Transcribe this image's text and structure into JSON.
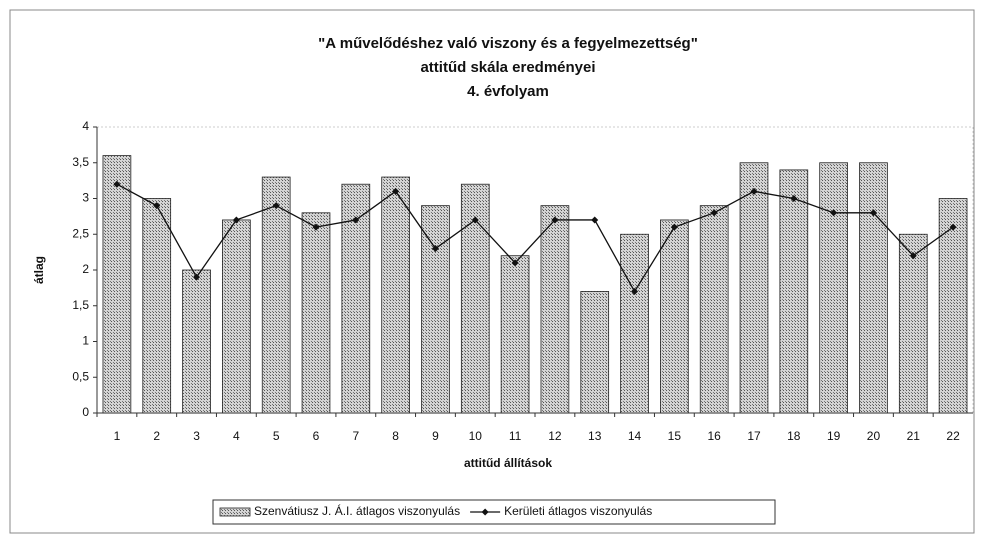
{
  "chart_data": {
    "type": "bar_line",
    "title": [
      "\"A művelődéshez való viszony és a fegyelmezettség\"",
      "attitűd skála eredményei",
      "4. évfolyam"
    ],
    "x_label": "attitűd állítások",
    "y_label": "átlag",
    "categories": [
      "1",
      "2",
      "3",
      "4",
      "5",
      "6",
      "7",
      "8",
      "9",
      "10",
      "11",
      "12",
      "13",
      "14",
      "15",
      "16",
      "17",
      "18",
      "19",
      "20",
      "21",
      "22"
    ],
    "series": [
      {
        "name": "Szenvátiusz J. Á.I. átlagos viszonyulás",
        "kind": "bar",
        "color": "#a9a9a9",
        "values": [
          3.6,
          3.0,
          2.0,
          2.7,
          3.3,
          2.8,
          3.2,
          3.3,
          2.9,
          3.2,
          2.2,
          2.9,
          1.7,
          2.5,
          2.7,
          2.9,
          3.5,
          3.4,
          3.5,
          3.5,
          2.5,
          3.0
        ]
      },
      {
        "name": "Kerületi átlagos viszonyulás",
        "kind": "line",
        "color": "#111111",
        "values": [
          3.2,
          2.9,
          1.9,
          2.7,
          2.9,
          2.6,
          2.7,
          3.1,
          2.3,
          2.7,
          2.1,
          2.7,
          2.7,
          1.7,
          2.6,
          2.8,
          3.1,
          3.0,
          2.8,
          2.8,
          2.2,
          2.6
        ]
      }
    ],
    "ylim": [
      0,
      4
    ],
    "yticks": [
      0,
      {
        "value": 0.5,
        "label": "0,5"
      },
      1,
      {
        "value": 1.5,
        "label": "1,5"
      },
      2,
      {
        "value": 2.5,
        "label": "2,5"
      },
      3,
      {
        "value": 3.5,
        "label": "3,5"
      },
      4
    ],
    "grid": false,
    "legend": "bottom"
  }
}
